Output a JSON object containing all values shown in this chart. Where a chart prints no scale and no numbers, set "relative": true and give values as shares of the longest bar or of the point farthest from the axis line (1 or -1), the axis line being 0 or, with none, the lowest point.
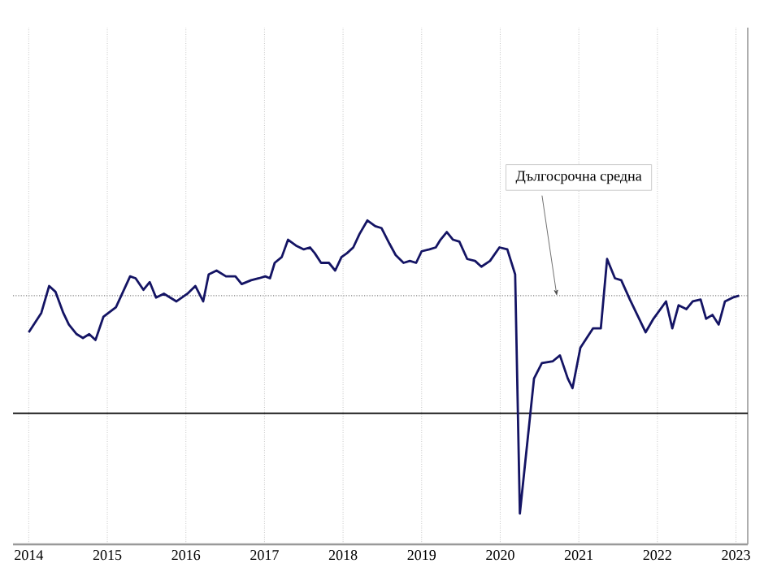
{
  "chart_data": {
    "type": "line",
    "relative": true,
    "xlim": [
      2013.8,
      2023.15
    ],
    "xticks": [
      2014,
      2015,
      2016,
      2017,
      2018,
      2019,
      2020,
      2021,
      2022,
      2023
    ],
    "grid": "x",
    "line_style": "solid",
    "marker": "none",
    "ref_lines": [
      {
        "axis": "y",
        "value": 0.61,
        "label": "Дългосрочна средна",
        "color": "#808080",
        "line_style": "dotted"
      }
    ],
    "series": [
      {
        "color": "#141464",
        "x": [
          2014.0,
          2014.16,
          2014.26,
          2014.34,
          2014.44,
          2014.51,
          2014.61,
          2014.69,
          2014.77,
          2014.85,
          2014.95,
          2015.11,
          2015.29,
          2015.36,
          2015.46,
          2015.54,
          2015.62,
          2015.72,
          2015.88,
          2016.02,
          2016.12,
          2016.22,
          2016.29,
          2016.39,
          2016.51,
          2016.63,
          2016.71,
          2016.83,
          2016.93,
          2017.01,
          2017.07,
          2017.13,
          2017.22,
          2017.3,
          2017.4,
          2017.5,
          2017.58,
          2017.64,
          2017.72,
          2017.82,
          2017.9,
          2017.98,
          2018.05,
          2018.13,
          2018.21,
          2018.31,
          2018.41,
          2018.49,
          2018.59,
          2018.67,
          2018.77,
          2018.85,
          2018.93,
          2019.0,
          2019.1,
          2019.18,
          2019.24,
          2019.32,
          2019.4,
          2019.48,
          2019.58,
          2019.68,
          2019.76,
          2019.87,
          2019.99,
          2020.09,
          2020.19,
          2020.25,
          2020.43,
          2020.53,
          2020.67,
          2020.76,
          2020.86,
          2020.92,
          2021.02,
          2021.18,
          2021.28,
          2021.36,
          2021.46,
          2021.54,
          2021.65,
          2021.85,
          2021.95,
          2022.11,
          2022.19,
          2022.27,
          2022.37,
          2022.45,
          2022.55,
          2022.62,
          2022.7,
          2022.78,
          2022.86,
          2022.96,
          2023.04
        ],
        "values": [
          0.42,
          0.52,
          0.66,
          0.63,
          0.52,
          0.46,
          0.41,
          0.39,
          0.41,
          0.38,
          0.5,
          0.55,
          0.71,
          0.7,
          0.64,
          0.68,
          0.6,
          0.62,
          0.58,
          0.62,
          0.66,
          0.58,
          0.72,
          0.74,
          0.71,
          0.71,
          0.67,
          0.69,
          0.7,
          0.71,
          0.7,
          0.78,
          0.81,
          0.9,
          0.87,
          0.85,
          0.86,
          0.83,
          0.78,
          0.78,
          0.74,
          0.81,
          0.83,
          0.86,
          0.93,
          1.0,
          0.97,
          0.96,
          0.88,
          0.82,
          0.78,
          0.79,
          0.78,
          0.84,
          0.85,
          0.86,
          0.9,
          0.94,
          0.9,
          0.89,
          0.8,
          0.79,
          0.76,
          0.79,
          0.86,
          0.85,
          0.72,
          -0.52,
          0.18,
          0.26,
          0.27,
          0.3,
          0.18,
          0.13,
          0.34,
          0.44,
          0.44,
          0.8,
          0.7,
          0.69,
          0.59,
          0.42,
          0.49,
          0.58,
          0.44,
          0.56,
          0.54,
          0.58,
          0.59,
          0.49,
          0.51,
          0.46,
          0.58,
          0.6,
          0.61
        ]
      }
    ]
  }
}
